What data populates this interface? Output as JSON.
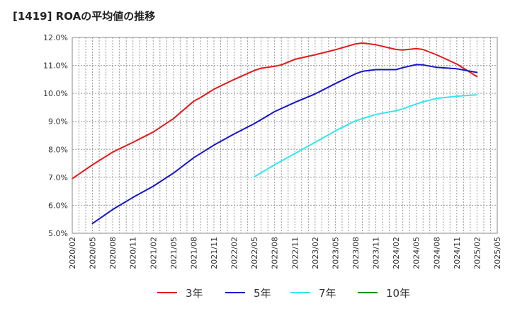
{
  "chart_data": {
    "type": "line",
    "title": "[1419]  ROAの平均値の推移",
    "xlabel": "",
    "ylabel": "",
    "ylim": [
      5.0,
      12.0
    ],
    "yticks": [
      "5.0%",
      "6.0%",
      "7.0%",
      "8.0%",
      "9.0%",
      "10.0%",
      "11.0%",
      "12.0%"
    ],
    "xticks": [
      "2020/02",
      "2020/05",
      "2020/08",
      "2020/11",
      "2021/02",
      "2021/05",
      "2021/08",
      "2021/11",
      "2022/02",
      "2022/05",
      "2022/08",
      "2022/11",
      "2023/02",
      "2023/05",
      "2023/08",
      "2023/11",
      "2024/02",
      "2024/05",
      "2024/08",
      "2024/11",
      "2025/02",
      "2025/05"
    ],
    "grid": true,
    "legend_position": "bottom",
    "series": [
      {
        "name": "3年",
        "color": "#e31a1c",
        "x": [
          "2020/02",
          "2020/05",
          "2020/08",
          "2020/11",
          "2021/02",
          "2021/05",
          "2021/08",
          "2021/09",
          "2021/11",
          "2022/02",
          "2022/05",
          "2022/06",
          "2022/08",
          "2022/09",
          "2022/11",
          "2023/02",
          "2023/05",
          "2023/08",
          "2023/09",
          "2023/11",
          "2024/02",
          "2024/03",
          "2024/05",
          "2024/06",
          "2024/08",
          "2024/11",
          "2025/02"
        ],
        "values": [
          6.95,
          7.45,
          7.9,
          8.25,
          8.62,
          9.1,
          9.72,
          9.85,
          10.15,
          10.5,
          10.82,
          10.9,
          10.97,
          11.02,
          11.22,
          11.38,
          11.56,
          11.77,
          11.8,
          11.74,
          11.57,
          11.55,
          11.6,
          11.57,
          11.38,
          11.05,
          10.6
        ]
      },
      {
        "name": "5年",
        "color": "#1515c8",
        "x": [
          "2020/05",
          "2020/08",
          "2020/11",
          "2021/02",
          "2021/05",
          "2021/08",
          "2021/11",
          "2022/02",
          "2022/05",
          "2022/08",
          "2022/11",
          "2023/02",
          "2023/05",
          "2023/08",
          "2023/09",
          "2023/11",
          "2024/02",
          "2024/03",
          "2024/05",
          "2024/06",
          "2024/08",
          "2024/11",
          "2025/02"
        ],
        "values": [
          5.35,
          5.85,
          6.28,
          6.68,
          7.15,
          7.7,
          8.15,
          8.55,
          8.92,
          9.35,
          9.68,
          9.98,
          10.35,
          10.7,
          10.79,
          10.85,
          10.85,
          10.92,
          11.03,
          11.02,
          10.93,
          10.88,
          10.75
        ]
      },
      {
        "name": "7年",
        "color": "#33e6f0",
        "x": [
          "2022/05",
          "2022/08",
          "2022/11",
          "2023/02",
          "2023/05",
          "2023/08",
          "2023/11",
          "2024/02",
          "2024/03",
          "2024/05",
          "2024/06",
          "2024/08",
          "2024/11",
          "2025/02"
        ],
        "values": [
          7.02,
          7.45,
          7.85,
          8.25,
          8.66,
          9.02,
          9.25,
          9.38,
          9.45,
          9.62,
          9.7,
          9.82,
          9.9,
          9.95
        ]
      },
      {
        "name": "10年",
        "color": "#1e8c1e",
        "x": [],
        "values": []
      }
    ]
  }
}
